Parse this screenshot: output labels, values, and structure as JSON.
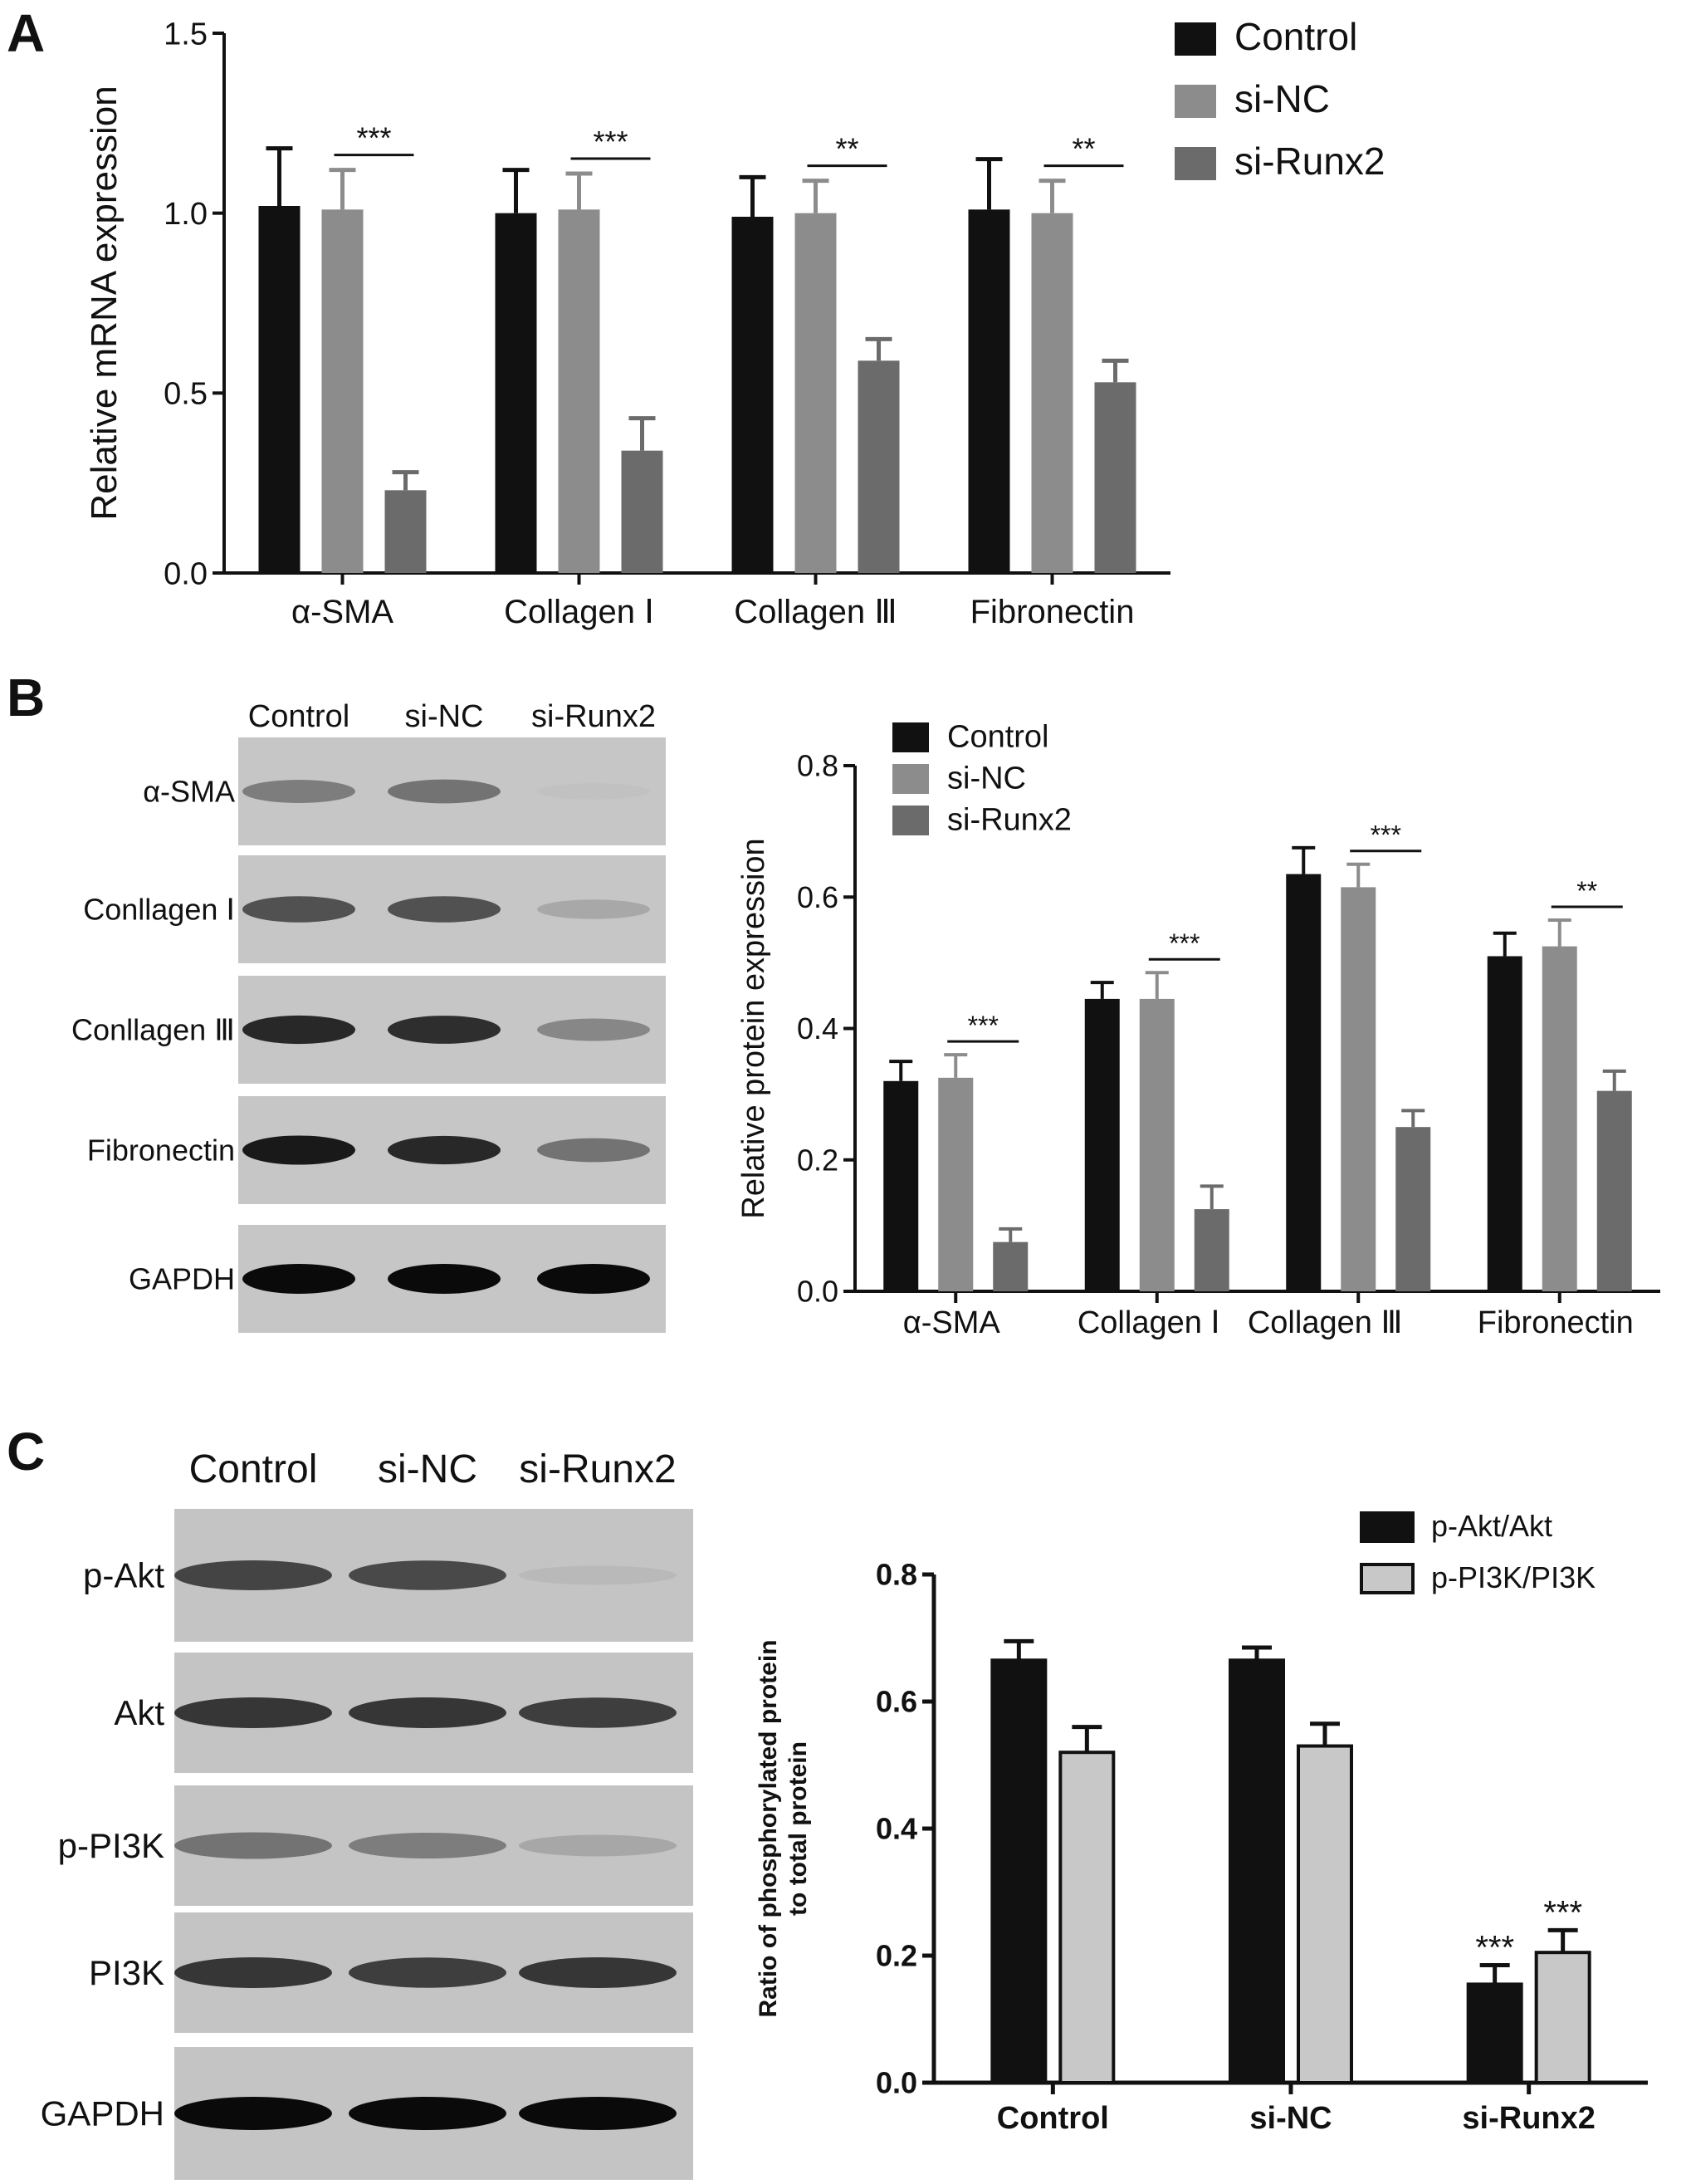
{
  "panels": {
    "a": "A",
    "b": "B",
    "c": "C"
  },
  "colors": {
    "control": "#111111",
    "si_nc": "#8c8c8c",
    "si_runx2": "#6b6b6b",
    "pakt": "#111111",
    "ppi3k": "#c8c8c8"
  },
  "chart_data": [
    {
      "type": "bar",
      "panel": "A",
      "categories": [
        "α-SMA",
        "Collagen Ⅰ",
        "Collagen Ⅲ",
        "Fibronectin"
      ],
      "ylabel": "Relative  mRNA expression",
      "ylim": [
        0,
        1.5
      ],
      "yticks": [
        "0.0",
        "0.5",
        "1.0",
        "1.5"
      ],
      "legend_position": "top-right",
      "series": [
        {
          "name": "Control",
          "values": [
            1.02,
            1.0,
            0.99,
            1.01
          ],
          "errors": [
            0.16,
            0.12,
            0.11,
            0.14
          ]
        },
        {
          "name": "si-NC",
          "values": [
            1.01,
            1.01,
            1.0,
            1.0
          ],
          "errors": [
            0.11,
            0.1,
            0.09,
            0.09
          ]
        },
        {
          "name": "si-Runx2",
          "values": [
            0.23,
            0.34,
            0.59,
            0.53
          ],
          "errors": [
            0.05,
            0.09,
            0.06,
            0.06
          ]
        }
      ],
      "significance": [
        "***",
        "***",
        "**",
        "**"
      ]
    },
    {
      "type": "bar",
      "panel": "B",
      "categories": [
        "α-SMA",
        "Collagen Ⅰ",
        "Collagen Ⅲ",
        "Fibronectin"
      ],
      "ylabel": "Relative protein expression",
      "ylim": [
        0,
        0.8
      ],
      "yticks": [
        "0.0",
        "0.2",
        "0.4",
        "0.6",
        "0.8"
      ],
      "legend_position": "top",
      "series": [
        {
          "name": "Control",
          "values": [
            0.32,
            0.445,
            0.635,
            0.51
          ],
          "errors": [
            0.03,
            0.025,
            0.04,
            0.035
          ]
        },
        {
          "name": "si-NC",
          "values": [
            0.325,
            0.445,
            0.615,
            0.525
          ],
          "errors": [
            0.035,
            0.04,
            0.035,
            0.04
          ]
        },
        {
          "name": "si-Runx2",
          "values": [
            0.075,
            0.125,
            0.25,
            0.305
          ],
          "errors": [
            0.02,
            0.035,
            0.025,
            0.03
          ]
        }
      ],
      "significance": [
        "***",
        "***",
        "***",
        "**"
      ]
    },
    {
      "type": "bar",
      "panel": "C",
      "categories": [
        "Control",
        "si-NC",
        "si-Runx2"
      ],
      "ylabel_line1": "Ratio of phosphorylated protein",
      "ylabel_line2": "to total protein",
      "ylim": [
        0,
        0.8
      ],
      "yticks": [
        "0.0",
        "0.2",
        "0.4",
        "0.6",
        "0.8"
      ],
      "legend_position": "top-right",
      "series": [
        {
          "name": "p-Akt/Akt",
          "values": [
            0.665,
            0.665,
            0.155
          ],
          "errors": [
            0.03,
            0.02,
            0.03
          ]
        },
        {
          "name": "p-PI3K/PI3K",
          "values": [
            0.52,
            0.53,
            0.205
          ],
          "errors": [
            0.04,
            0.035,
            0.035
          ]
        }
      ],
      "significance_above_last": [
        "***",
        "***"
      ]
    }
  ],
  "blots": {
    "b": {
      "lanes": [
        "Control",
        "si-NC",
        "si-Runx2"
      ],
      "rows": [
        {
          "label": "α-SMA",
          "intensity": [
            0.55,
            0.6,
            0.08
          ]
        },
        {
          "label": "Conllagen Ⅰ",
          "intensity": [
            0.75,
            0.75,
            0.3
          ]
        },
        {
          "label": "Conllagen Ⅲ",
          "intensity": [
            0.9,
            0.88,
            0.5
          ]
        },
        {
          "label": "Fibronectin",
          "intensity": [
            0.95,
            0.9,
            0.6
          ]
        },
        {
          "label": "GAPDH",
          "intensity": [
            1.0,
            1.0,
            1.0
          ]
        }
      ]
    },
    "c": {
      "lanes": [
        "Control",
        "si-NC",
        "si-Runx2"
      ],
      "rows": [
        {
          "label": "p-Akt",
          "intensity": [
            0.8,
            0.78,
            0.15
          ]
        },
        {
          "label": "Akt",
          "intensity": [
            0.85,
            0.85,
            0.82
          ]
        },
        {
          "label": "p-PI3K",
          "intensity": [
            0.6,
            0.55,
            0.3
          ]
        },
        {
          "label": "PI3K",
          "intensity": [
            0.85,
            0.82,
            0.85
          ]
        },
        {
          "label": "GAPDH",
          "intensity": [
            1.0,
            1.0,
            1.0
          ]
        }
      ]
    }
  }
}
